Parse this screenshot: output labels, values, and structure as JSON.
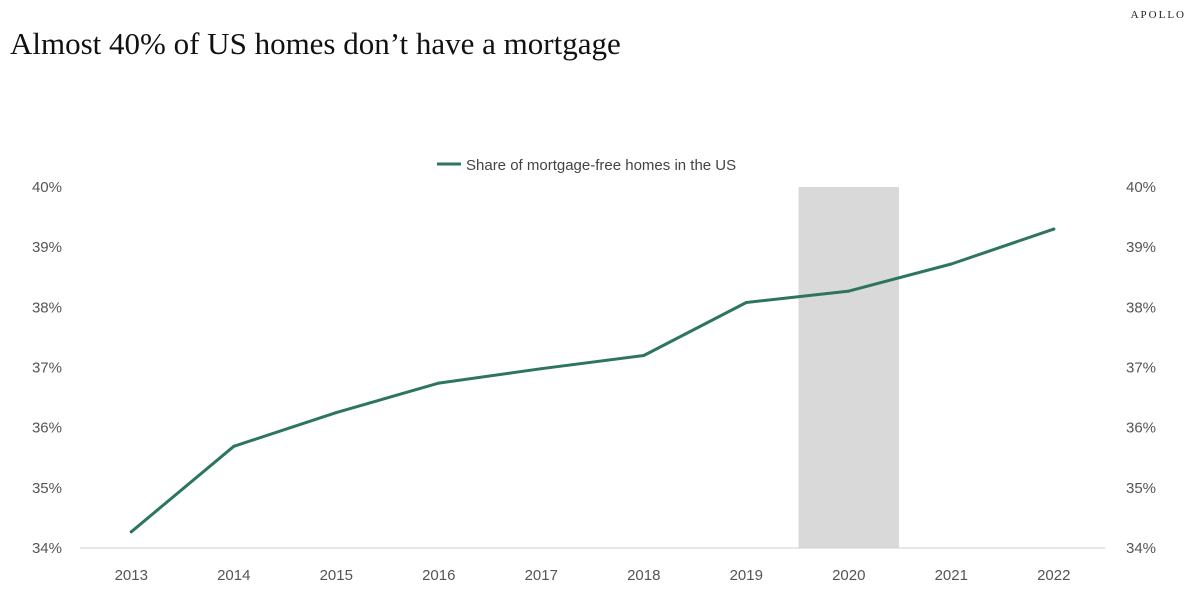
{
  "brand": "APOLLO",
  "title": "Almost 40% of US homes don’t have a mortgage",
  "colors": {
    "line": "#2e7560",
    "recession": "#d9d9d9",
    "axis": "#d0d0d0"
  },
  "chart_data": {
    "type": "line",
    "title": "Almost 40% of US homes don’t have a mortgage",
    "xlabel": "",
    "ylabel": "",
    "categories": [
      "2013",
      "2014",
      "2015",
      "2016",
      "2017",
      "2018",
      "2019",
      "2020",
      "2021",
      "2022"
    ],
    "series": [
      {
        "name": "Share of mortgage-free homes in the US",
        "values": [
          34.27,
          35.69,
          36.25,
          36.74,
          36.98,
          37.2,
          38.08,
          38.27,
          38.72,
          39.3
        ]
      }
    ],
    "ylim": [
      34,
      40
    ],
    "yticks": [
      "34%",
      "35%",
      "36%",
      "37%",
      "38%",
      "39%",
      "40%"
    ],
    "secondary_yticks": [
      "34%",
      "35%",
      "36%",
      "37%",
      "38%",
      "39%",
      "40%"
    ],
    "shaded_region": {
      "category": "2020"
    },
    "legend": "top-center",
    "grid": false
  }
}
